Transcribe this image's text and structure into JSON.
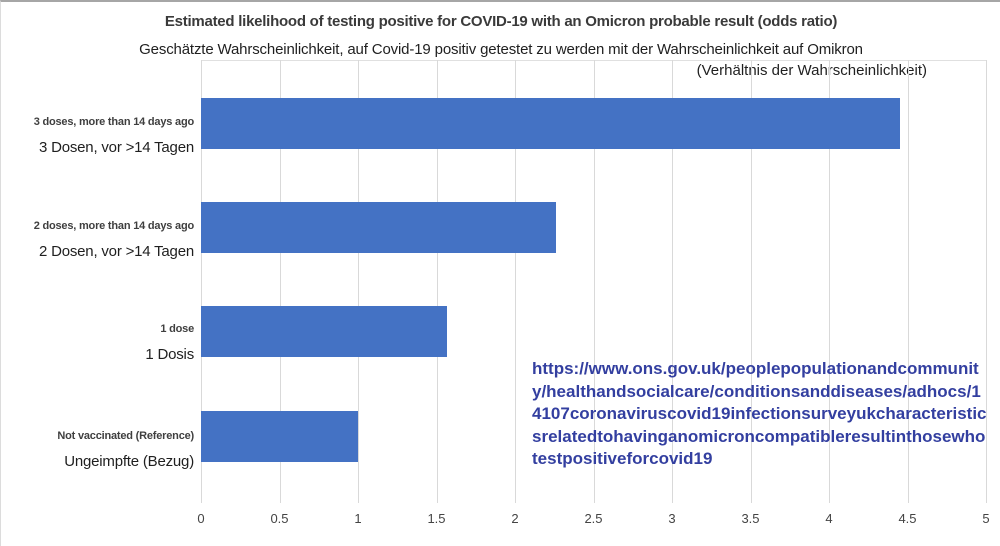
{
  "title": "Estimated likelihood of testing positive for COVID-19 with an Omicron probable result (odds ratio)",
  "subtitle_de": "Geschätzte Wahrscheinlichkeit, auf Covid-19 positiv getestet zu werden mit der Wahrscheinlichkeit auf Omikron",
  "subtitle_de_cont": "(Verhältnis der Wahrscheinlichkeit)",
  "source_url": "https://www.ons.gov.uk/peoplepopulationandcommunity/healthandsocialcare/conditionsanddiseases/adhocs/14107coronaviruscovid19infectionsurveyukcharacteristicsrelatedtohavinganomicroncompatibleresultinthosewhotestpositiveforcovid19",
  "colors": {
    "bar": "#4472C4",
    "gridline": "#D9D9D9",
    "url_text": "#333FA0",
    "title_text": "#3A3A3A"
  },
  "chart_data": {
    "type": "bar",
    "orientation": "horizontal",
    "title": "Estimated likelihood of testing positive for COVID-19 with an Omicron probable result (odds ratio)",
    "subtitle": "Geschätzte Wahrscheinlichkeit, auf Covid-19 positiv getestet zu werden mit der Wahrscheinlichkeit auf Omikron (Verhältnis der Wahrscheinlichkeit)",
    "categories": [
      "3 doses, more than 14 days ago",
      "2 doses, more than 14 days ago",
      "1 dose",
      "Not vaccinated (Reference)"
    ],
    "categories_de": [
      "3 Dosen, vor >14 Tagen",
      "2 Dosen, vor >14 Tagen",
      "1 Dosis",
      "Ungeimpfte (Bezug)"
    ],
    "values": [
      4.45,
      2.26,
      1.57,
      1.0
    ],
    "xlabel": "",
    "ylabel": "",
    "xlim": [
      0,
      5
    ],
    "xticks": [
      "0",
      "0.5",
      "1",
      "1.5",
      "2",
      "2.5",
      "3",
      "3.5",
      "4",
      "4.5",
      "5"
    ],
    "xtick_values": [
      0,
      0.5,
      1,
      1.5,
      2,
      2.5,
      3,
      3.5,
      4,
      4.5,
      5
    ],
    "grid": true,
    "legend": false,
    "bar_color": "#4472C4"
  }
}
